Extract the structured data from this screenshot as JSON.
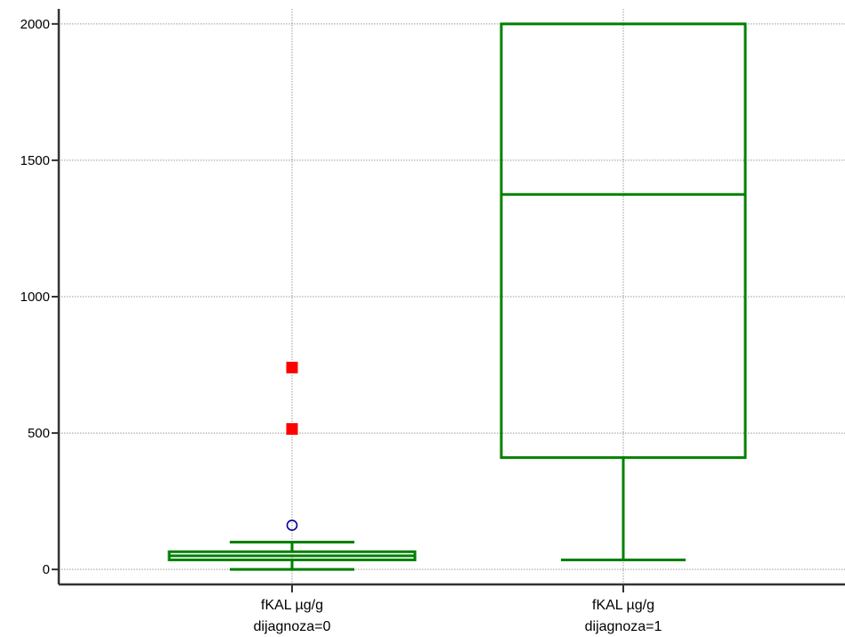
{
  "chart_data": {
    "type": "box",
    "title": "",
    "xlabel": "",
    "ylabel": "",
    "ylim": [
      -55,
      2055
    ],
    "yticks": [
      0,
      500,
      1000,
      1500,
      2000
    ],
    "grid": true,
    "colors": {
      "box": "#008000",
      "far_outlier": "#ff0000",
      "outlier": "#000099",
      "grid": "#999999",
      "axis": "#333333"
    },
    "series": [
      {
        "label_line1": "fKAL µg/g",
        "label_line2": "dijagnoza=0",
        "whisker_low": 0,
        "q1": 35,
        "median": 50,
        "q3": 65,
        "whisker_high": 100,
        "outliers": [
          162
        ],
        "far_outliers": [
          515,
          740
        ]
      },
      {
        "label_line1": "fKAL µg/g",
        "label_line2": "dijagnoza=1",
        "whisker_low": 35,
        "q1": 410,
        "median": 1375,
        "q3": 2000,
        "whisker_high": 2000,
        "outliers": [],
        "far_outliers": []
      }
    ]
  }
}
